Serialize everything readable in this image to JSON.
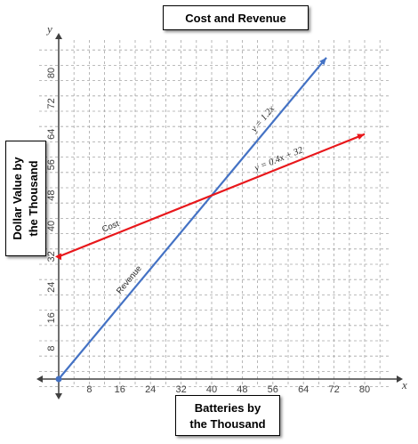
{
  "chart_data": {
    "type": "line",
    "title": "Cost and Revenue",
    "xlabel": "Batteries by\nthe Thousand",
    "ylabel": "Dollar Value by\nthe Thousand",
    "x_axis_letter": "x",
    "y_axis_letter": "y",
    "xlim": [
      0,
      84
    ],
    "ylim": [
      0,
      88
    ],
    "x_ticks": [
      8,
      16,
      24,
      32,
      40,
      48,
      56,
      64,
      72,
      80
    ],
    "y_ticks": [
      8,
      16,
      24,
      32,
      40,
      48,
      56,
      64,
      72,
      80
    ],
    "grid": true,
    "series": [
      {
        "name": "Revenue",
        "equation": "y = 1.2x",
        "color": "#4472c4",
        "points": [
          [
            0,
            0
          ],
          [
            70,
            84
          ]
        ]
      },
      {
        "name": "Cost",
        "equation": "y = 0.4x + 32",
        "color": "#e8171b",
        "points": [
          [
            0,
            32
          ],
          [
            80,
            64
          ]
        ]
      }
    ]
  }
}
